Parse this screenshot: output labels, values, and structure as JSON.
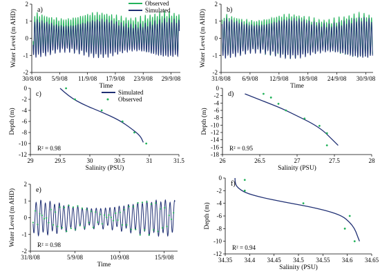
{
  "colors": {
    "observed": "#22b25a",
    "simulated": "#1f2f73"
  },
  "chart_data": [
    {
      "id": "a",
      "type": "line",
      "panel_label": "a)",
      "xlabel": "Time",
      "ylabel": "Water Level (m AHD)",
      "xlim": [
        0,
        32
      ],
      "ylim": [
        -2,
        2
      ],
      "y_ticks": [
        -2,
        -1,
        0,
        1,
        2
      ],
      "x_ticks": [
        {
          "v": 0,
          "label": "30/8/08"
        },
        {
          "v": 6,
          "label": "5/9/08"
        },
        {
          "v": 12,
          "label": "11/9/08"
        },
        {
          "v": 18,
          "label": "17/9/08"
        },
        {
          "v": 24,
          "label": "23/9/08"
        },
        {
          "v": 30,
          "label": "29/9/08"
        }
      ],
      "legend": {
        "position": "top-right",
        "items": [
          {
            "name": "Observed",
            "series": "observed"
          },
          {
            "name": "Simulated",
            "series": "simulated"
          }
        ]
      },
      "tide": {
        "x_start": 0.3,
        "x_end": 31.8,
        "period_days": 0.5175,
        "observed_amp": [
          0.85,
          1.2
        ],
        "observed_offset": 0.25,
        "simulated_amp": [
          0.7,
          1.05
        ],
        "simulated_offset": 0.0
      },
      "series": [
        {
          "key": "observed",
          "name": "Observed",
          "style": "line"
        },
        {
          "key": "simulated",
          "name": "Simulated",
          "style": "line"
        }
      ]
    },
    {
      "id": "b",
      "type": "line",
      "panel_label": "b)",
      "xlabel": "Time",
      "ylabel": "Water Level (m AHD)",
      "xlim": [
        0,
        31.5
      ],
      "ylim": [
        -2,
        2
      ],
      "y_ticks": [
        -2,
        -1,
        0,
        1,
        2
      ],
      "x_ticks": [
        {
          "v": 0,
          "label": "31/8/08"
        },
        {
          "v": 6,
          "label": "6/9/08"
        },
        {
          "v": 12,
          "label": "12/9/08"
        },
        {
          "v": 18,
          "label": "18/9/08"
        },
        {
          "v": 24,
          "label": "24/9/08"
        },
        {
          "v": 30,
          "label": "30/9/08"
        }
      ],
      "tide": {
        "x_start": 0.2,
        "x_end": 31.4,
        "period_days": 0.5175,
        "observed_amp": [
          0.85,
          1.2
        ],
        "observed_offset": 0.15,
        "simulated_amp": [
          0.75,
          1.1
        ],
        "simulated_offset": 0.0
      },
      "series": [
        {
          "key": "observed",
          "name": "Observed",
          "style": "line"
        },
        {
          "key": "simulated",
          "name": "Simulated",
          "style": "line"
        }
      ]
    },
    {
      "id": "c",
      "type": "scatter",
      "panel_label": "c)",
      "xlabel": "Salinity (PSU)",
      "ylabel": "Depth (m)",
      "xlim": [
        29,
        31.5
      ],
      "ylim": [
        -12,
        0
      ],
      "x_ticks": [
        {
          "v": 29,
          "label": "29"
        },
        {
          "v": 29.5,
          "label": "29.5"
        },
        {
          "v": 30,
          "label": "30"
        },
        {
          "v": 30.5,
          "label": "30.5"
        },
        {
          "v": 31,
          "label": "31"
        },
        {
          "v": 31.5,
          "label": "31.5"
        }
      ],
      "y_ticks": [
        0,
        -2,
        -4,
        -6,
        -8,
        -10,
        -12
      ],
      "legend": {
        "position": "top-right",
        "items": [
          {
            "name": "Simulated",
            "series": "simulated"
          },
          {
            "name": "Observed",
            "series": "observed"
          }
        ]
      },
      "annotation": "R² = 0.98",
      "series": [
        {
          "key": "simulated",
          "name": "Simulated",
          "style": "line",
          "points": [
            [
              29.5,
              0
            ],
            [
              29.65,
              -1.5
            ],
            [
              29.9,
              -3
            ],
            [
              30.2,
              -4.3
            ],
            [
              30.5,
              -5.8
            ],
            [
              30.7,
              -7.3
            ],
            [
              30.85,
              -8.6
            ],
            [
              30.9,
              -9.8
            ]
          ]
        },
        {
          "key": "observed",
          "name": "Observed",
          "style": "points",
          "points": [
            [
              29.6,
              0
            ],
            [
              29.75,
              -2
            ],
            [
              30.2,
              -4
            ],
            [
              30.55,
              -6
            ],
            [
              30.75,
              -8
            ],
            [
              30.95,
              -10
            ]
          ]
        }
      ]
    },
    {
      "id": "d",
      "type": "scatter",
      "panel_label": "d)",
      "xlabel": "Salinity (PSU)",
      "ylabel": "Depth (m)",
      "xlim": [
        26,
        28
      ],
      "ylim": [
        -18,
        0
      ],
      "x_ticks": [
        {
          "v": 26,
          "label": "26"
        },
        {
          "v": 26.5,
          "label": "26.5"
        },
        {
          "v": 27,
          "label": "27"
        },
        {
          "v": 27.5,
          "label": "27.5"
        },
        {
          "v": 28,
          "label": "28"
        }
      ],
      "y_ticks": [
        0,
        -2,
        -4,
        -6,
        -8,
        -10,
        -12,
        -14,
        -16,
        -18
      ],
      "annotation": "R² = 0.95",
      "series": [
        {
          "key": "simulated",
          "name": "Simulated",
          "style": "line",
          "points": [
            [
              26.3,
              -1.5
            ],
            [
              26.55,
              -3.5
            ],
            [
              26.8,
              -5.5
            ],
            [
              27.0,
              -7.5
            ],
            [
              27.2,
              -9.5
            ],
            [
              27.35,
              -11.5
            ],
            [
              27.45,
              -13.5
            ],
            [
              27.55,
              -15.5
            ]
          ]
        },
        {
          "key": "observed",
          "name": "Observed",
          "style": "points",
          "points": [
            [
              26.55,
              -1.5
            ],
            [
              26.65,
              -2.5
            ],
            [
              26.75,
              -4.2
            ],
            [
              26.85,
              -6
            ],
            [
              27.1,
              -8.2
            ],
            [
              27.3,
              -10.2
            ],
            [
              27.4,
              -12.2
            ],
            [
              27.4,
              -15.5
            ]
          ]
        }
      ]
    },
    {
      "id": "e",
      "type": "line",
      "panel_label": "e)",
      "xlabel": "Time",
      "ylabel": "Water Level (m AHD)",
      "xlim": [
        0,
        16.5
      ],
      "ylim": [
        -2,
        2
      ],
      "y_ticks": [
        -2,
        -1,
        0,
        1,
        2
      ],
      "x_ticks": [
        {
          "v": 0,
          "label": "31/8/08"
        },
        {
          "v": 5,
          "label": "5/9/08"
        },
        {
          "v": 10,
          "label": "10/9/08"
        },
        {
          "v": 15,
          "label": "15/9/08"
        }
      ],
      "annotation": "R² = 0.98",
      "tide": {
        "x_start": 0.3,
        "x_end": 16.2,
        "period_days": 0.5175,
        "simulated_amp": [
          0.55,
          1.0
        ],
        "simulated_offset": 0.0,
        "observed_step_days": 0.25
      },
      "series": [
        {
          "key": "simulated",
          "name": "Simulated",
          "style": "line"
        },
        {
          "key": "observed",
          "name": "Observed",
          "style": "points"
        }
      ]
    },
    {
      "id": "f",
      "type": "scatter",
      "panel_label": "f)",
      "xlabel": "Salinity (PSU)",
      "ylabel": "Depth (m)",
      "xlim": [
        34.35,
        34.65
      ],
      "ylim": [
        -12,
        0
      ],
      "x_ticks": [
        {
          "v": 34.35,
          "label": "34.35"
        },
        {
          "v": 34.4,
          "label": "34.4"
        },
        {
          "v": 34.45,
          "label": "34.45"
        },
        {
          "v": 34.5,
          "label": "34.5"
        },
        {
          "v": 34.55,
          "label": "34.55"
        },
        {
          "v": 34.6,
          "label": "34.6"
        },
        {
          "v": 34.65,
          "label": "34.65"
        }
      ],
      "y_ticks": [
        0,
        -2,
        -4,
        -6,
        -8,
        -10,
        -12
      ],
      "annotation": "R² = 0.94",
      "series": [
        {
          "key": "simulated",
          "name": "Simulated",
          "style": "line",
          "points": [
            [
              34.37,
              0
            ],
            [
              34.37,
              -0.8
            ],
            [
              34.375,
              -1.5
            ],
            [
              34.39,
              -2.3
            ],
            [
              34.42,
              -3.0
            ],
            [
              34.47,
              -3.8
            ],
            [
              34.52,
              -4.5
            ],
            [
              34.56,
              -5.2
            ],
            [
              34.59,
              -6.0
            ],
            [
              34.605,
              -7.0
            ],
            [
              34.615,
              -8.0
            ],
            [
              34.62,
              -9.0
            ],
            [
              34.625,
              -10.0
            ]
          ]
        },
        {
          "key": "observed",
          "name": "Observed",
          "style": "points",
          "points": [
            [
              34.39,
              -0.3
            ],
            [
              34.39,
              -2.0
            ],
            [
              34.51,
              -4.0
            ],
            [
              34.605,
              -6.0
            ],
            [
              34.595,
              -8.0
            ],
            [
              34.615,
              -10.0
            ]
          ]
        }
      ]
    }
  ]
}
